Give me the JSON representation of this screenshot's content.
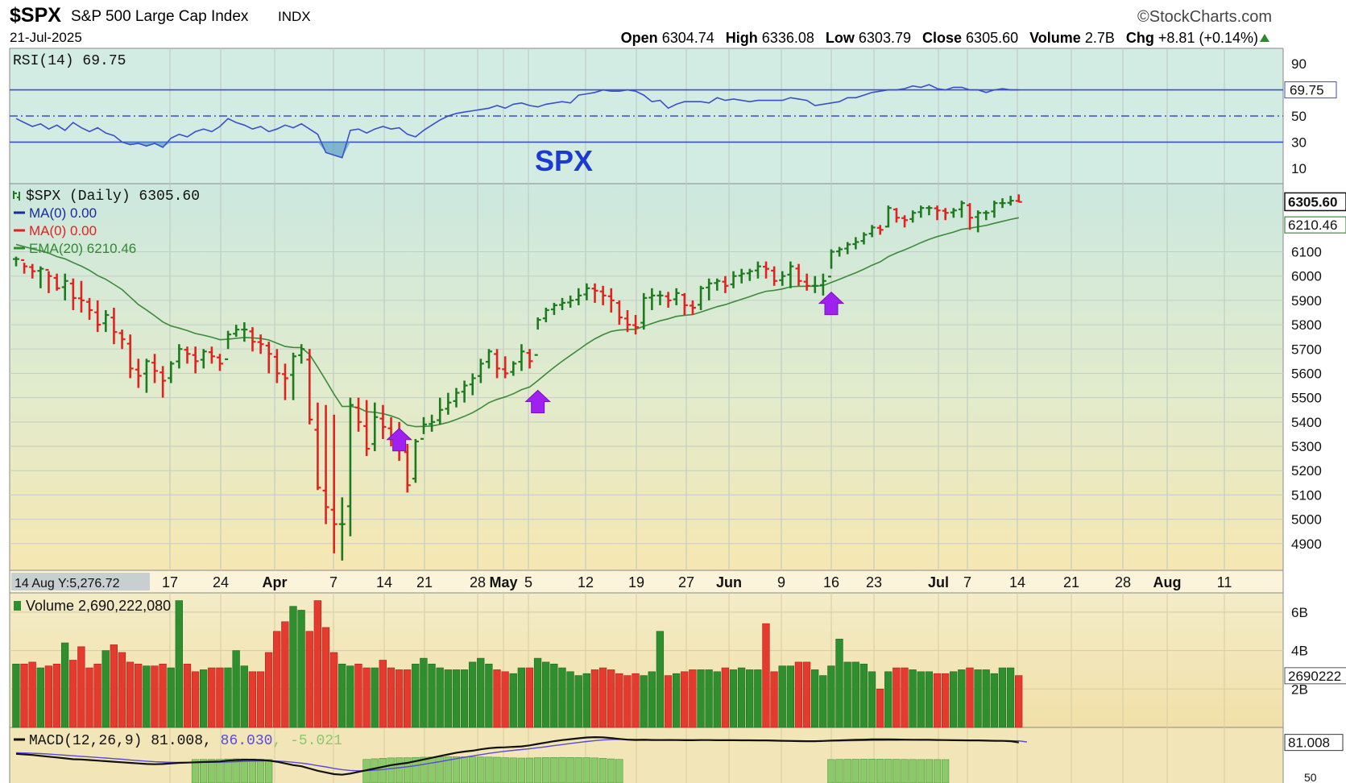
{
  "header": {
    "symbol": "$SPX",
    "description": "S&P 500 Large Cap Index",
    "exchange": "INDX",
    "brand": "©StockCharts.com",
    "date": "21-Jul-2025",
    "open_label": "Open",
    "open": "6304.74",
    "high_label": "High",
    "high": "6336.08",
    "low_label": "Low",
    "low": "6303.79",
    "close_label": "Close",
    "close": "6305.60",
    "volume_label": "Volume",
    "volume": "2.7B",
    "chg_label": "Chg",
    "chg": "+8.81 (+0.14%)"
  },
  "colors": {
    "up": "#1e7a1e",
    "down": "#e0231e",
    "ema": "#2e8b2e",
    "rsi": "#3a50c8",
    "purple": "#a020f0",
    "panel_top": "#cfe9e0",
    "panel_bottom": "#f5e8b4"
  },
  "chart_data": [
    {
      "type": "line",
      "panel": "rsi",
      "title": "RSI(14) 69.75",
      "y_ticks": [
        "90",
        "50",
        "30",
        "10"
      ],
      "ylim": [
        0,
        100
      ],
      "reference_lines": [
        70,
        50,
        30
      ],
      "last_value_label": "69.75",
      "values": [
        48,
        45,
        42,
        44,
        40,
        43,
        39,
        45,
        41,
        38,
        41,
        37,
        35,
        30,
        28,
        29,
        27,
        29,
        26,
        33,
        36,
        34,
        38,
        40,
        38,
        42,
        48,
        45,
        43,
        40,
        42,
        38,
        40,
        43,
        41,
        44,
        40,
        36,
        22,
        20,
        18,
        39,
        40,
        37,
        40,
        42,
        40,
        41,
        36,
        34,
        39,
        43,
        47,
        50,
        52,
        53,
        54,
        55,
        56,
        58,
        56,
        59,
        60,
        58,
        57,
        59,
        60,
        61,
        60,
        66,
        67,
        68,
        70,
        69,
        69,
        70,
        69,
        66,
        61,
        62,
        56,
        59,
        61,
        61,
        61,
        60,
        64,
        62,
        63,
        62,
        61,
        62,
        62,
        62,
        62,
        64,
        63,
        62,
        58,
        59,
        60,
        61,
        64,
        64,
        66,
        68,
        69,
        70,
        70,
        71,
        73,
        72,
        74,
        71,
        70,
        72,
        72,
        70,
        70,
        68,
        70,
        71,
        70,
        70
      ]
    },
    {
      "type": "ohlc",
      "panel": "price",
      "title": "$SPX (Daily) 6305.60",
      "legend": [
        {
          "label": "MA(0) 0.00",
          "color": "#1a2a9a"
        },
        {
          "label": "MA(0) 0.00",
          "color": "#e0231e"
        },
        {
          "label": "EMA(20) 6210.46",
          "color": "#2e8b2e"
        }
      ],
      "annotation": "SPX",
      "y_ticks": [
        "6100",
        "6000",
        "5900",
        "5800",
        "5700",
        "5600",
        "5500",
        "5400",
        "5300",
        "5200",
        "5100",
        "5000",
        "4900"
      ],
      "ylim": [
        4790,
        6380
      ],
      "price_label": "6305.60",
      "ema_label": "6210.46",
      "x_labels": [
        "17",
        "24",
        "Apr",
        "7",
        "14",
        "21",
        "28",
        "May",
        "5",
        "12",
        "19",
        "27",
        "Jun",
        "9",
        "16",
        "23",
        "Jul",
        "7",
        "14",
        "21",
        "28",
        "Aug",
        "11"
      ],
      "x_corner_label": "14 Aug Y:5,276.72",
      "up_arrows_on_days": [
        47,
        64,
        100,
        124
      ],
      "close": [
        6070,
        6040,
        6020,
        6030,
        6000,
        5950,
        5980,
        5910,
        5900,
        5860,
        5800,
        5840,
        5770,
        5740,
        5620,
        5590,
        5650,
        5610,
        5570,
        5640,
        5700,
        5680,
        5650,
        5690,
        5670,
        5640,
        5760,
        5780,
        5780,
        5730,
        5720,
        5680,
        5600,
        5580,
        5670,
        5700,
        5410,
        5130,
        5050,
        4980,
        4980,
        5470,
        5400,
        5290,
        5420,
        5380,
        5340,
        5300,
        5140,
        5320,
        5390,
        5400,
        5450,
        5480,
        5520,
        5550,
        5580,
        5640,
        5690,
        5620,
        5600,
        5640,
        5690,
        5650,
        5820,
        5860,
        5880,
        5890,
        5900,
        5920,
        5950,
        5940,
        5920,
        5900,
        5830,
        5800,
        5790,
        5910,
        5920,
        5920,
        5900,
        5930,
        5880,
        5870,
        5950,
        5970,
        5980,
        5960,
        6000,
        6010,
        6020,
        6040,
        6030,
        5980,
        6000,
        6040,
        5980,
        5960,
        5960,
        5980,
        6100,
        6110,
        6130,
        6140,
        6170,
        6200,
        6190,
        6280,
        6240,
        6230,
        6260,
        6280,
        6280,
        6270,
        6260,
        6270,
        6300,
        6240,
        6260,
        6260,
        6300,
        6300,
        6310,
        6305
      ],
      "high": [
        6080,
        6055,
        6050,
        6040,
        6020,
        6010,
        6010,
        5990,
        5980,
        5910,
        5900,
        5860,
        5870,
        5780,
        5760,
        5660,
        5660,
        5680,
        5630,
        5650,
        5720,
        5710,
        5710,
        5700,
        5710,
        5680,
        5775,
        5800,
        5810,
        5790,
        5760,
        5730,
        5700,
        5640,
        5685,
        5720,
        5700,
        5480,
        5470,
        5430,
        5090,
        5500,
        5500,
        5490,
        5480,
        5470,
        5420,
        5400,
        5310,
        5330,
        5420,
        5430,
        5500,
        5520,
        5540,
        5570,
        5600,
        5660,
        5700,
        5700,
        5670,
        5650,
        5720,
        5700,
        5830,
        5870,
        5890,
        5910,
        5920,
        5950,
        5970,
        5970,
        5960,
        5950,
        5900,
        5860,
        5840,
        5930,
        5950,
        5940,
        5935,
        5950,
        5930,
        5900,
        5960,
        5990,
        5990,
        6000,
        6020,
        6030,
        6030,
        6060,
        6060,
        6040,
        6020,
        6060,
        6050,
        6010,
        6000,
        6010,
        6110,
        6120,
        6140,
        6160,
        6180,
        6210,
        6210,
        6290,
        6280,
        6250,
        6270,
        6290,
        6290,
        6290,
        6280,
        6280,
        6310,
        6300,
        6270,
        6270,
        6310,
        6320,
        6330,
        6336
      ],
      "low": [
        6040,
        6010,
        5990,
        5950,
        5930,
        5940,
        5900,
        5860,
        5850,
        5820,
        5770,
        5770,
        5720,
        5700,
        5580,
        5540,
        5520,
        5560,
        5500,
        5560,
        5620,
        5640,
        5600,
        5620,
        5640,
        5610,
        5700,
        5750,
        5730,
        5690,
        5680,
        5600,
        5560,
        5490,
        5490,
        5640,
        5390,
        5120,
        4980,
        4860,
        4830,
        4930,
        5360,
        5260,
        5280,
        5330,
        5300,
        5240,
        5110,
        5150,
        5350,
        5360,
        5390,
        5430,
        5460,
        5480,
        5510,
        5560,
        5620,
        5580,
        5580,
        5590,
        5610,
        5620,
        5780,
        5810,
        5840,
        5860,
        5870,
        5880,
        5900,
        5890,
        5880,
        5850,
        5800,
        5770,
        5760,
        5780,
        5860,
        5880,
        5870,
        5880,
        5840,
        5840,
        5860,
        5900,
        5940,
        5930,
        5950,
        5970,
        5980,
        5990,
        5990,
        5960,
        5960,
        5950,
        5960,
        5940,
        5930,
        5920,
        6030,
        6080,
        6090,
        6110,
        6130,
        6160,
        6170,
        6200,
        6220,
        6200,
        6220,
        6240,
        6250,
        6230,
        6230,
        6240,
        6240,
        6190,
        6180,
        6230,
        6240,
        6280,
        6290,
        6303
      ]
    },
    {
      "type": "bar",
      "panel": "volume",
      "title": "Volume 2,690,222,080",
      "y_ticks": [
        "6B",
        "4B",
        "2B"
      ],
      "ylim": [
        0,
        7
      ],
      "last_value_label": "2690222",
      "values_billion": [
        3.3,
        3.3,
        3.4,
        3.1,
        3.2,
        3.3,
        4.4,
        3.5,
        4.2,
        3.1,
        3.3,
        4.0,
        4.3,
        3.9,
        3.4,
        3.3,
        3.2,
        3.2,
        3.3,
        3.1,
        6.6,
        3.3,
        2.9,
        3.0,
        3.1,
        3.1,
        3.1,
        4.0,
        3.2,
        2.9,
        2.9,
        3.9,
        5.0,
        5.5,
        6.3,
        6.1,
        5.0,
        6.6,
        5.2,
        3.9,
        3.3,
        3.2,
        3.3,
        3.1,
        3.1,
        3.5,
        3.1,
        3.0,
        3.0,
        3.3,
        3.6,
        3.3,
        3.1,
        3.0,
        3.0,
        3.0,
        3.4,
        3.6,
        3.3,
        3.0,
        2.9,
        2.8,
        3.1,
        3.1,
        3.6,
        3.4,
        3.3,
        3.1,
        2.9,
        2.7,
        2.8,
        3.0,
        3.1,
        3.0,
        2.8,
        2.7,
        2.8,
        2.7,
        2.9,
        5.0,
        2.7,
        2.8,
        2.9,
        3.0,
        3.0,
        3.0,
        2.9,
        3.1,
        3.0,
        3.1,
        3.0,
        3.0,
        5.4,
        2.9,
        3.2,
        3.2,
        3.4,
        3.4,
        3.0,
        2.7,
        3.2,
        4.6,
        3.4,
        3.4,
        3.3,
        2.9,
        2.0,
        2.9,
        3.1,
        3.1,
        3.0,
        2.9,
        2.9,
        2.8,
        2.8,
        2.9,
        3.0,
        3.1,
        3.0,
        3.0,
        2.8,
        3.1,
        3.1,
        2.7
      ]
    },
    {
      "type": "line",
      "panel": "macd",
      "title": "MACD(12,26,9)",
      "macd_value": "81.008",
      "signal_value": "86.030",
      "histogram_value": "-5.021",
      "last_value_label": "81.008",
      "y_ticks": [
        "50"
      ],
      "macd": [
        -20,
        -25,
        -30,
        -38,
        -45,
        -52,
        -60,
        -68,
        -70,
        -75,
        -80,
        -85,
        -90,
        -95,
        -100,
        -105,
        -110,
        -112,
        -110,
        -105,
        -100,
        -98,
        -95,
        -92,
        -90,
        -88,
        -80,
        -75,
        -72,
        -72,
        -75,
        -80,
        -90,
        -105,
        -120,
        -130,
        -150,
        -170,
        -185,
        -200,
        -205,
        -195,
        -180,
        -165,
        -150,
        -135,
        -120,
        -110,
        -100,
        -85,
        -70,
        -55,
        -40,
        -25,
        -10,
        0,
        8,
        20,
        30,
        36,
        38,
        42,
        46,
        55,
        68,
        80,
        92,
        102,
        110,
        118,
        125,
        128,
        126,
        120,
        112,
        106,
        103,
        104,
        103,
        102,
        103,
        102,
        101,
        101,
        102,
        102,
        101,
        101,
        101,
        100,
        100,
        99,
        99,
        97,
        96,
        94,
        93,
        92,
        92,
        94,
        97,
        99,
        102,
        104,
        106,
        108,
        108,
        108,
        107,
        106,
        105,
        104,
        104,
        103,
        102,
        101,
        100,
        99,
        99,
        97,
        96,
        95,
        92,
        81
      ],
      "signal": [
        -10,
        -12,
        -15,
        -18,
        -22,
        -27,
        -32,
        -37,
        -42,
        -47,
        -52,
        -57,
        -63,
        -68,
        -74,
        -80,
        -85,
        -90,
        -93,
        -95,
        -96,
        -97,
        -97,
        -96,
        -95,
        -94,
        -92,
        -89,
        -86,
        -84,
        -82,
        -82,
        -84,
        -88,
        -95,
        -102,
        -112,
        -124,
        -136,
        -149,
        -160,
        -167,
        -170,
        -169,
        -165,
        -159,
        -151,
        -143,
        -134,
        -124,
        -113,
        -101,
        -89,
        -76,
        -63,
        -50,
        -39,
        -27,
        -16,
        -6,
        3,
        11,
        18,
        26,
        34,
        43,
        53,
        62,
        72,
        81,
        89,
        97,
        103,
        107,
        108,
        108,
        107,
        107,
        106,
        105,
        105,
        104,
        104,
        103,
        103,
        102,
        102,
        102,
        101,
        101,
        101,
        100,
        100,
        99,
        98,
        97,
        96,
        95,
        94,
        94,
        95,
        95,
        96,
        97,
        98,
        99,
        100,
        101,
        101,
        102,
        102,
        102,
        102,
        102,
        101,
        101,
        101,
        100,
        99,
        99,
        98,
        97,
        96,
        95,
        86
      ]
    }
  ]
}
